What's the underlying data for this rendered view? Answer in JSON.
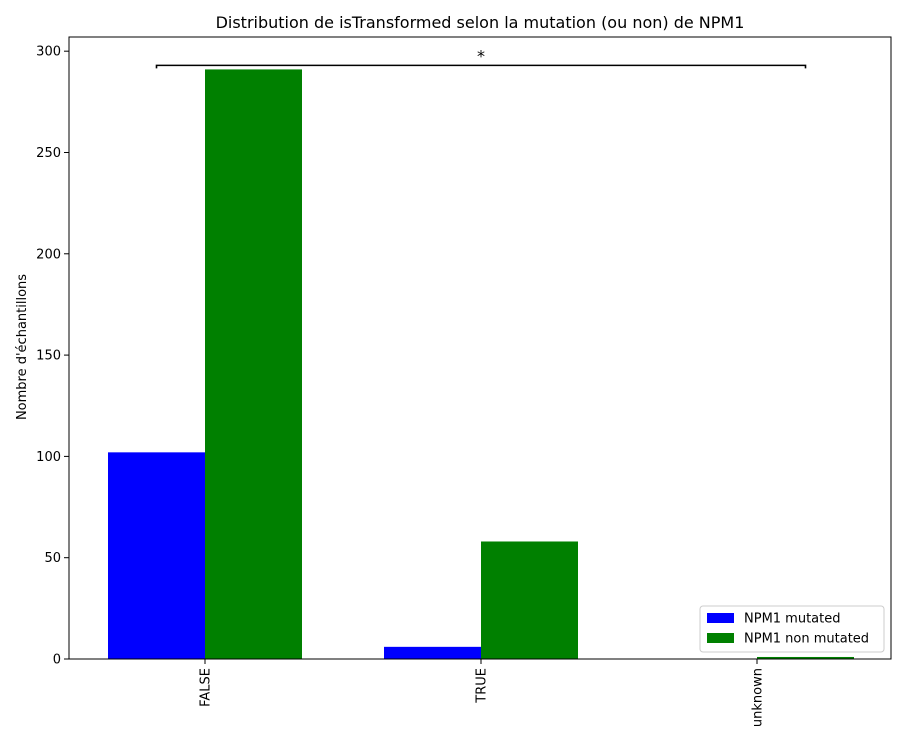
{
  "chart_data": {
    "type": "bar",
    "title": "Distribution de isTransformed selon la mutation (ou non) de NPM1",
    "xlabel": "",
    "ylabel": "Nombre d'échantillons",
    "categories": [
      "FALSE",
      "TRUE",
      "unknown"
    ],
    "series": [
      {
        "name": "NPM1 mutated",
        "color": "#0000ff",
        "values": [
          102,
          6,
          0
        ]
      },
      {
        "name": "NPM1 non mutated",
        "color": "#008000",
        "values": [
          291,
          58,
          1
        ]
      }
    ],
    "ylim": [
      0,
      307
    ],
    "yticks": [
      0,
      50,
      100,
      150,
      200,
      250,
      300
    ],
    "grid": false,
    "legend_position": "lower-right",
    "annotation": {
      "text": "*",
      "from_category": "FALSE",
      "to_category": "unknown",
      "y": 293
    }
  }
}
